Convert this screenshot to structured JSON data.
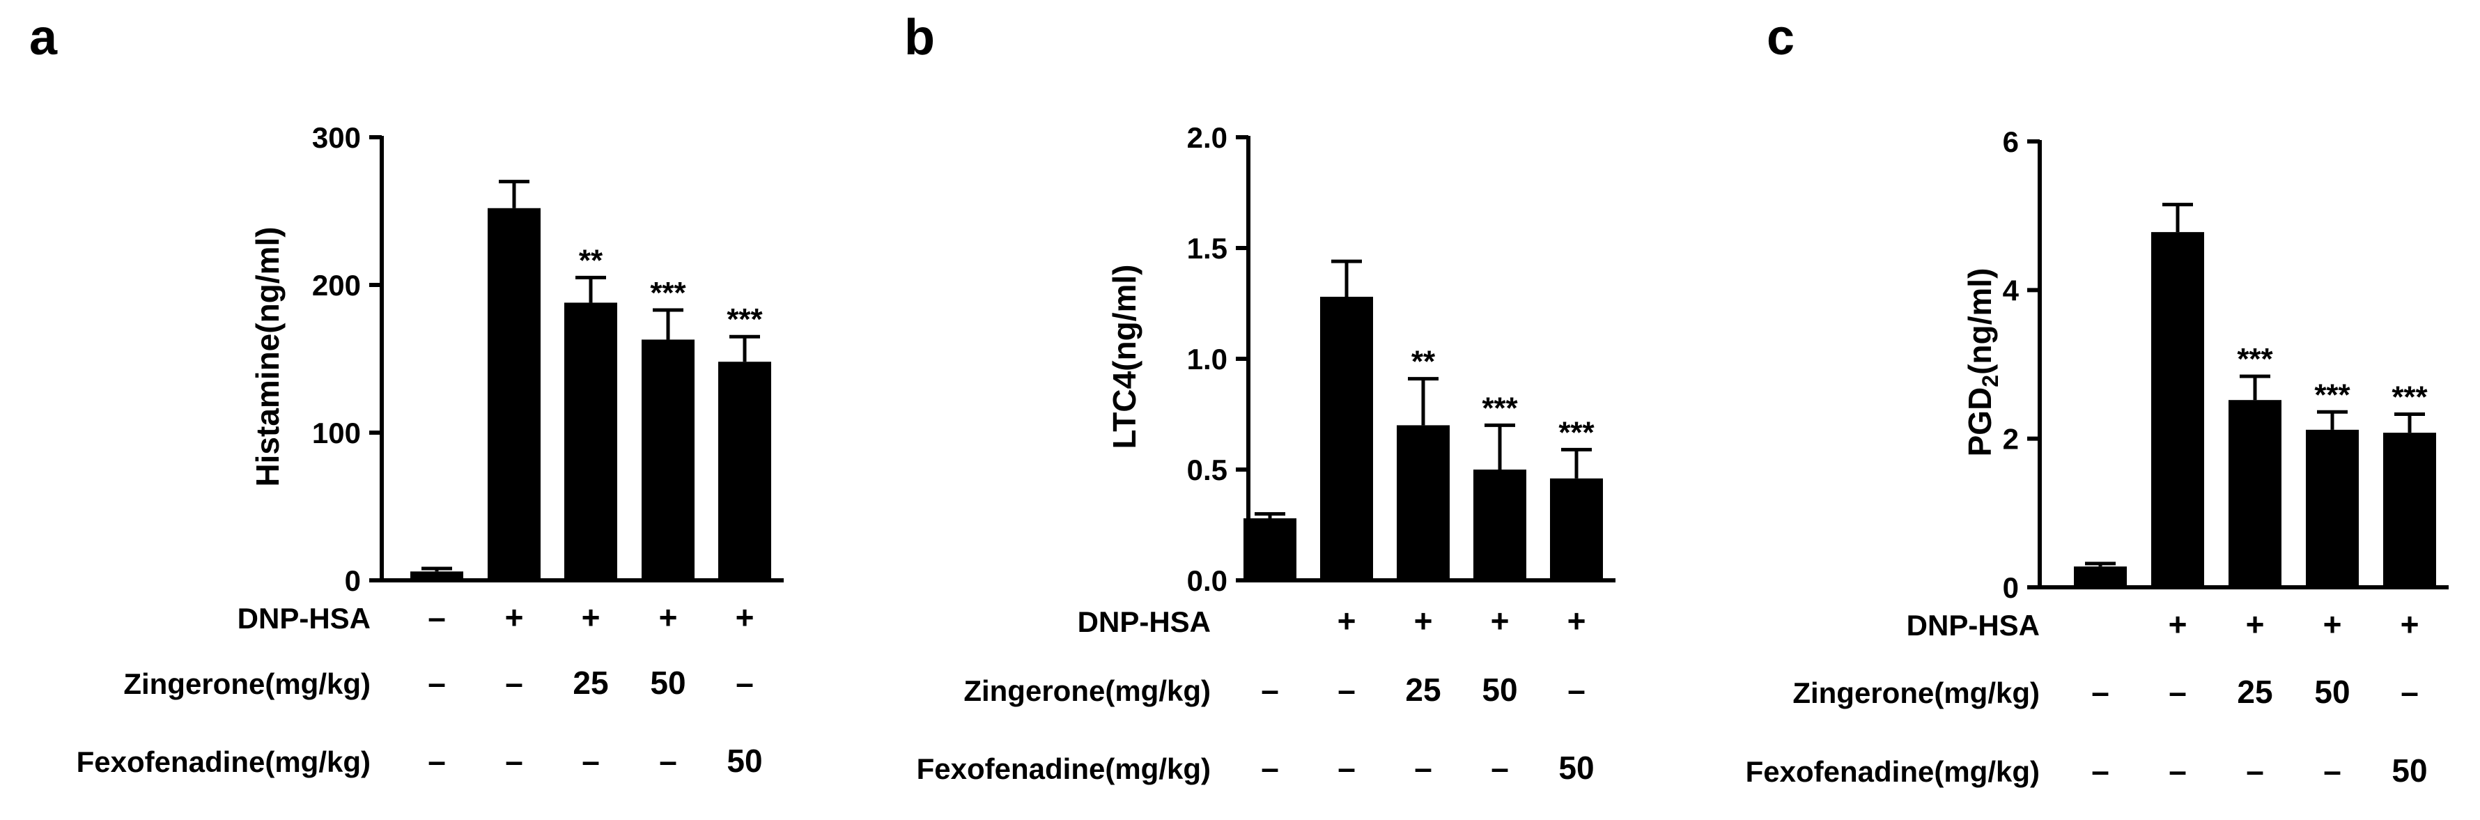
{
  "panels": [
    {
      "letter": "a",
      "chart_data": {
        "type": "bar",
        "ylabel": "Histamine(ng/ml)",
        "ylabel_sub": "",
        "ylabel_tail": "",
        "ylim": [
          0,
          300
        ],
        "yticks": [
          "0",
          "100",
          "200",
          "300"
        ],
        "values": [
          6,
          252,
          188,
          163,
          148
        ],
        "errors": [
          2,
          18,
          17,
          20,
          17
        ],
        "significance": [
          "",
          "",
          "**",
          "***",
          "***"
        ],
        "colors": {
          "bar": "#000000"
        }
      },
      "rows": [
        {
          "label": "DNP-HSA",
          "cells": [
            "–",
            "+",
            "+",
            "+",
            "+"
          ]
        },
        {
          "label": "Zingerone(mg/kg)",
          "cells": [
            "–",
            "–",
            "25",
            "50",
            "–"
          ]
        },
        {
          "label": "Fexofenadine(mg/kg)",
          "cells": [
            "–",
            "–",
            "–",
            "–",
            "50"
          ]
        }
      ]
    },
    {
      "letter": "b",
      "chart_data": {
        "type": "bar",
        "ylabel": "LTC4(ng/ml)",
        "ylabel_sub": "",
        "ylabel_tail": "",
        "ylim": [
          0,
          2.0
        ],
        "yticks": [
          "0.0",
          "0.5",
          "1.0",
          "1.5",
          "2.0"
        ],
        "values": [
          0.28,
          1.28,
          0.7,
          0.5,
          0.46
        ],
        "errors": [
          0.02,
          0.16,
          0.21,
          0.2,
          0.13
        ],
        "significance": [
          "",
          "",
          "**",
          "***",
          "***"
        ],
        "colors": {
          "bar": "#000000"
        }
      },
      "rows": [
        {
          "label": "DNP-HSA",
          "cells": [
            "",
            "+",
            "+",
            "+",
            "+"
          ]
        },
        {
          "label": "Zingerone(mg/kg)",
          "cells": [
            "–",
            "–",
            "25",
            "50",
            "–"
          ]
        },
        {
          "label": "Fexofenadine(mg/kg)",
          "cells": [
            "–",
            "–",
            "–",
            "–",
            "50"
          ]
        }
      ]
    },
    {
      "letter": "c",
      "chart_data": {
        "type": "bar",
        "ylabel": "PGD",
        "ylabel_sub": "2",
        "ylabel_tail": "(ng/ml)",
        "ylim": [
          0,
          6
        ],
        "yticks": [
          "0",
          "2",
          "4",
          "6"
        ],
        "values": [
          0.28,
          4.78,
          2.52,
          2.12,
          2.08
        ],
        "errors": [
          0.04,
          0.37,
          0.32,
          0.24,
          0.25
        ],
        "significance": [
          "",
          "",
          "***",
          "***",
          "***"
        ],
        "colors": {
          "bar": "#000000"
        }
      },
      "rows": [
        {
          "label": "DNP-HSA",
          "cells": [
            "",
            "+",
            "+",
            "+",
            "+"
          ]
        },
        {
          "label": "Zingerone(mg/kg)",
          "cells": [
            "–",
            "–",
            "25",
            "50",
            "–"
          ]
        },
        {
          "label": "Fexofenadine(mg/kg)",
          "cells": [
            "–",
            "–",
            "–",
            "–",
            "50"
          ]
        }
      ]
    }
  ]
}
